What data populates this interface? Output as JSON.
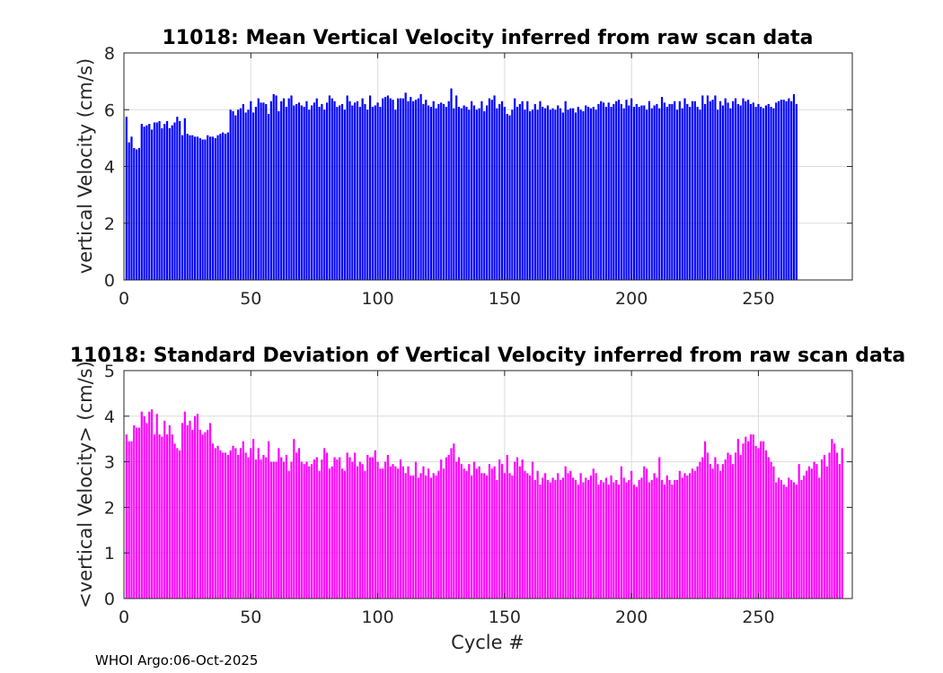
{
  "chart_data": [
    {
      "type": "bar",
      "title": "11018: Mean Vertical Velocity inferred from raw scan data",
      "xlabel": "",
      "ylabel": "vertical Velocity (cm/s)",
      "xlim": [
        0,
        287
      ],
      "ylim": [
        0,
        8
      ],
      "xticks": [
        0,
        50,
        100,
        150,
        200,
        250
      ],
      "yticks": [
        0,
        2,
        4,
        6,
        8
      ],
      "grid": true,
      "color": "#0000ff",
      "x_start": 1,
      "values": [
        5.75,
        4.85,
        5.05,
        4.65,
        4.6,
        4.65,
        5.5,
        5.4,
        5.45,
        5.5,
        5.3,
        5.55,
        5.55,
        5.6,
        5.35,
        5.5,
        5.6,
        5.35,
        5.45,
        5.55,
        5.75,
        5.6,
        5.1,
        5.7,
        5.15,
        5.1,
        5.1,
        5.05,
        5.05,
        5.0,
        4.95,
        4.95,
        5.1,
        5.05,
        5.05,
        5.0,
        5.1,
        5.15,
        5.2,
        5.15,
        5.2,
        6.0,
        5.95,
        5.8,
        6.0,
        6.05,
        6.2,
        5.9,
        6.0,
        6.3,
        5.9,
        6.1,
        6.4,
        6.25,
        6.25,
        6.2,
        5.85,
        6.3,
        6.55,
        6.5,
        5.95,
        6.3,
        6.4,
        6.1,
        6.4,
        6.5,
        6.15,
        6.2,
        6.25,
        6.15,
        6.1,
        6.3,
        6.0,
        6.15,
        6.25,
        6.4,
        6.1,
        6.2,
        6.0,
        6.25,
        6.5,
        6.4,
        6.3,
        6.1,
        6.15,
        6.2,
        6.0,
        6.5,
        6.3,
        6.15,
        6.25,
        6.3,
        6.1,
        6.4,
        6.2,
        6.0,
        6.5,
        6.1,
        6.15,
        6.25,
        6.1,
        6.4,
        6.45,
        6.5,
        6.4,
        6.35,
        6.0,
        6.4,
        6.4,
        6.4,
        6.6,
        6.3,
        6.45,
        6.3,
        6.35,
        6.4,
        6.55,
        6.2,
        6.35,
        6.15,
        6.1,
        6.3,
        6.05,
        6.2,
        6.25,
        6.2,
        6.1,
        6.3,
        6.75,
        6.05,
        6.5,
        6.1,
        6.05,
        6.15,
        6.1,
        6.0,
        6.3,
        6.15,
        6.0,
        6.05,
        6.3,
        5.95,
        6.15,
        6.4,
        6.35,
        6.5,
        6.05,
        6.2,
        6.3,
        6.1,
        5.85,
        5.8,
        6.0,
        6.4,
        6.1,
        6.2,
        6.3,
        6.0,
        6.3,
        5.95,
        6.0,
        6.2,
        6.0,
        6.3,
        6.1,
        6.05,
        6.15,
        6.0,
        6.05,
        6.0,
        6.15,
        6.05,
        5.9,
        6.3,
        6.0,
        6.05,
        6.05,
        5.9,
        6.1,
        6.0,
        5.95,
        6.15,
        6.1,
        6.05,
        6.1,
        6.0,
        6.2,
        6.3,
        6.25,
        6.1,
        6.25,
        6.1,
        6.2,
        6.3,
        6.35,
        6.2,
        6.05,
        6.35,
        6.15,
        6.4,
        6.1,
        6.2,
        6.1,
        6.15,
        6.15,
        6.0,
        6.3,
        6.05,
        6.15,
        6.2,
        6.05,
        6.45,
        6.25,
        6.1,
        6.2,
        6.2,
        6.3,
        6.0,
        6.3,
        6.05,
        6.4,
        6.2,
        6.1,
        6.3,
        6.3,
        6.1,
        6.0,
        6.5,
        6.2,
        6.5,
        6.3,
        6.35,
        6.5,
        6.0,
        6.3,
        6.15,
        6.4,
        6.25,
        6.05,
        6.3,
        6.4,
        6.2,
        6.15,
        6.4,
        6.3,
        6.35,
        6.2,
        6.25,
        6.1,
        6.2,
        6.1,
        6.05,
        6.15,
        6.2,
        6.1,
        6.05,
        6.25,
        6.3,
        6.35,
        6.35,
        6.3,
        6.4,
        6.3,
        6.55,
        6.2
      ]
    },
    {
      "type": "bar",
      "title": "11018: Standard Deviation of Vertical Velocity inferred from raw scan data",
      "xlabel": "Cycle #",
      "ylabel": "<vertical Velocity> (cm/s)",
      "xlim": [
        0,
        287
      ],
      "ylim": [
        0,
        5
      ],
      "xticks": [
        0,
        50,
        100,
        150,
        200,
        250
      ],
      "yticks": [
        0,
        1,
        2,
        3,
        4,
        5
      ],
      "grid": true,
      "color": "#ff00ff",
      "x_start": 1,
      "values": [
        3.6,
        3.45,
        3.45,
        3.8,
        3.75,
        3.75,
        4.1,
        4.0,
        3.85,
        4.1,
        4.15,
        3.6,
        4.05,
        3.6,
        3.55,
        3.9,
        3.6,
        3.8,
        3.6,
        3.4,
        3.3,
        3.25,
        3.85,
        4.1,
        3.8,
        3.9,
        3.7,
        4.0,
        4.05,
        3.7,
        3.6,
        3.65,
        3.7,
        3.85,
        3.4,
        3.3,
        3.35,
        3.25,
        3.2,
        3.2,
        3.15,
        3.25,
        3.35,
        3.3,
        3.15,
        3.3,
        3.45,
        3.2,
        3.1,
        3.3,
        3.5,
        3.05,
        3.3,
        3.05,
        3.15,
        3.1,
        3.45,
        3.0,
        3.0,
        3.0,
        3.3,
        3.1,
        3.0,
        3.15,
        2.8,
        3.0,
        3.5,
        3.2,
        3.3,
        3.0,
        2.95,
        3.0,
        2.9,
        2.95,
        3.05,
        3.1,
        2.8,
        3.05,
        3.3,
        3.2,
        2.85,
        2.9,
        3.1,
        3.05,
        3.1,
        2.85,
        2.8,
        3.2,
        3.1,
        3.0,
        3.2,
        2.9,
        3.0,
        2.95,
        2.8,
        3.15,
        3.1,
        3.1,
        3.25,
        3.0,
        2.85,
        2.85,
        3.0,
        3.15,
        2.9,
        2.95,
        2.9,
        2.85,
        3.05,
        2.9,
        2.75,
        2.9,
        2.7,
        2.7,
        3.0,
        2.65,
        2.75,
        2.9,
        2.7,
        2.85,
        2.65,
        2.75,
        2.7,
        2.8,
        3.05,
        2.85,
        3.1,
        3.15,
        3.3,
        3.4,
        3.0,
        3.1,
        2.95,
        2.85,
        2.8,
        2.95,
        2.7,
        3.0,
        2.85,
        2.9,
        2.75,
        2.75,
        2.7,
        2.95,
        2.85,
        2.9,
        2.6,
        3.05,
        2.95,
        2.75,
        3.15,
        2.75,
        2.7,
        3.0,
        3.1,
        2.9,
        3.05,
        2.8,
        2.75,
        2.7,
        3.0,
        2.6,
        2.8,
        2.5,
        2.65,
        2.75,
        2.6,
        2.55,
        2.65,
        2.6,
        2.75,
        2.6,
        2.65,
        2.9,
        2.75,
        2.8,
        2.65,
        2.6,
        2.5,
        2.75,
        2.55,
        2.65,
        2.6,
        2.7,
        2.85,
        2.75,
        2.5,
        2.6,
        2.55,
        2.65,
        2.5,
        2.7,
        2.55,
        2.6,
        2.5,
        2.9,
        2.65,
        2.55,
        2.6,
        2.8,
        2.5,
        2.45,
        2.6,
        2.65,
        2.9,
        2.85,
        2.55,
        2.6,
        2.75,
        2.65,
        3.1,
        2.6,
        2.5,
        2.7,
        2.6,
        2.5,
        2.6,
        2.6,
        2.8,
        2.65,
        2.75,
        2.7,
        2.75,
        2.85,
        2.8,
        2.9,
        3.0,
        3.1,
        3.45,
        3.2,
        2.95,
        2.85,
        3.1,
        2.95,
        2.8,
        2.95,
        3.05,
        3.2,
        3.15,
        2.95,
        3.2,
        3.5,
        3.15,
        3.4,
        3.55,
        3.45,
        3.6,
        3.6,
        3.35,
        3.3,
        3.45,
        3.45,
        3.25,
        3.1,
        3.0,
        2.9,
        2.55,
        2.65,
        2.6,
        2.5,
        2.45,
        2.65,
        2.6,
        2.55,
        2.5,
        2.95,
        2.6,
        2.7,
        2.8,
        2.9,
        2.85,
        3.0,
        2.95,
        2.65,
        3.05,
        3.15,
        2.9,
        3.2,
        3.5,
        3.4,
        3.2,
        2.95,
        3.3
      ]
    }
  ],
  "footer": {
    "text": "WHOI Argo:06-Oct-2025"
  }
}
